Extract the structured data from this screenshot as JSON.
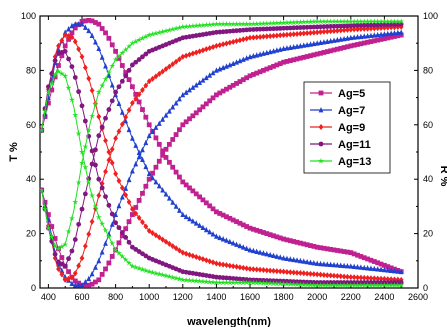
{
  "chart_data": {
    "type": "scatter",
    "title": "",
    "xlabel": "wavelength(nm)",
    "ylabel_left": "T %",
    "ylabel_right": "R %",
    "xlim": [
      350,
      2600
    ],
    "ylim": [
      0,
      100
    ],
    "x_ticks": [
      400,
      600,
      800,
      1000,
      1200,
      1400,
      1600,
      1800,
      2000,
      2200,
      2400,
      2600
    ],
    "y_ticks": [
      0,
      20,
      40,
      60,
      80,
      100
    ],
    "grid": false,
    "legend_position": "right",
    "series": [
      {
        "name": "Ag=5",
        "color": "#c02090",
        "marker": "square",
        "T": {
          "x": [
            360,
            400,
            450,
            500,
            550,
            600,
            650,
            700,
            750,
            800,
            900,
            1000,
            1100,
            1200,
            1400,
            1600,
            1800,
            2000,
            2200,
            2500
          ],
          "y": [
            58,
            68,
            80,
            89,
            95,
            98,
            98.5,
            97,
            93,
            87,
            74,
            60,
            48,
            39,
            28,
            22,
            18,
            15,
            13,
            6
          ]
        },
        "R": {
          "x": [
            360,
            400,
            450,
            500,
            550,
            600,
            650,
            700,
            750,
            800,
            900,
            1000,
            1100,
            1200,
            1400,
            1600,
            1800,
            2000,
            2200,
            2500
          ],
          "y": [
            36,
            27,
            16,
            8,
            3,
            1,
            1,
            3,
            8,
            14,
            27,
            40,
            51,
            60,
            71,
            78,
            83,
            86,
            89,
            93
          ]
        }
      },
      {
        "name": "Ag=7",
        "color": "#2040d0",
        "marker": "triangle",
        "T": {
          "x": [
            360,
            400,
            450,
            500,
            550,
            600,
            650,
            700,
            750,
            800,
            900,
            1000,
            1200,
            1400,
            1600,
            1800,
            2000,
            2200,
            2500
          ],
          "y": [
            58,
            70,
            86,
            94,
            97,
            97,
            94,
            88,
            80,
            71,
            55,
            42,
            27,
            19,
            14,
            11,
            9,
            8,
            6
          ]
        },
        "R": {
          "x": [
            360,
            400,
            450,
            500,
            550,
            600,
            650,
            700,
            750,
            800,
            900,
            1000,
            1200,
            1400,
            1600,
            1800,
            2000,
            2200,
            2500
          ],
          "y": [
            36,
            25,
            10,
            4,
            1,
            1,
            4,
            10,
            18,
            27,
            43,
            56,
            71,
            80,
            85,
            88,
            90,
            92,
            94
          ]
        }
      },
      {
        "name": "Ag=9",
        "color": "#ee2020",
        "marker": "diamond",
        "T": {
          "x": [
            360,
            400,
            450,
            500,
            550,
            600,
            650,
            700,
            750,
            800,
            900,
            1000,
            1200,
            1400,
            1600,
            1800,
            2000,
            2200,
            2500
          ],
          "y": [
            58,
            73,
            88,
            93,
            92,
            85,
            75,
            63,
            52,
            42,
            29,
            21,
            13,
            9,
            7,
            6,
            5,
            4,
            3
          ]
        },
        "R": {
          "x": [
            360,
            400,
            450,
            500,
            550,
            600,
            650,
            700,
            750,
            800,
            900,
            1000,
            1200,
            1400,
            1600,
            1800,
            2000,
            2200,
            2500
          ],
          "y": [
            36,
            23,
            8,
            3,
            4,
            11,
            22,
            34,
            45,
            55,
            68,
            76,
            85,
            89,
            92,
            93,
            94,
            95,
            96
          ]
        }
      },
      {
        "name": "Ag=11",
        "color": "#801880",
        "marker": "circle",
        "T": {
          "x": [
            360,
            400,
            450,
            500,
            550,
            600,
            650,
            700,
            800,
            900,
            1000,
            1200,
            1400,
            1600,
            2000,
            2500
          ],
          "y": [
            58,
            74,
            86,
            87,
            80,
            67,
            53,
            40,
            24,
            15,
            11,
            6,
            4,
            3,
            2,
            2
          ]
        },
        "R": {
          "x": [
            360,
            400,
            450,
            500,
            550,
            600,
            650,
            700,
            800,
            900,
            1000,
            1200,
            1400,
            1600,
            2000,
            2500
          ],
          "y": [
            36,
            22,
            10,
            8,
            15,
            29,
            43,
            56,
            72,
            82,
            87,
            92,
            94,
            95,
            96,
            97
          ]
        }
      },
      {
        "name": "Ag=13",
        "color": "#20e020",
        "marker": "star",
        "T": {
          "x": [
            360,
            400,
            450,
            500,
            550,
            600,
            650,
            700,
            800,
            900,
            1000,
            1200,
            1400,
            1600,
            2000,
            2500
          ],
          "y": [
            58,
            72,
            80,
            78,
            67,
            50,
            36,
            26,
            14,
            8,
            6,
            3,
            2,
            2,
            1,
            1
          ]
        },
        "R": {
          "x": [
            360,
            400,
            450,
            500,
            550,
            600,
            650,
            700,
            800,
            900,
            1000,
            1200,
            1400,
            1600,
            2000,
            2500
          ],
          "y": [
            36,
            22,
            14,
            16,
            28,
            46,
            61,
            72,
            84,
            90,
            93,
            96,
            97,
            97,
            98,
            98
          ]
        }
      }
    ]
  }
}
